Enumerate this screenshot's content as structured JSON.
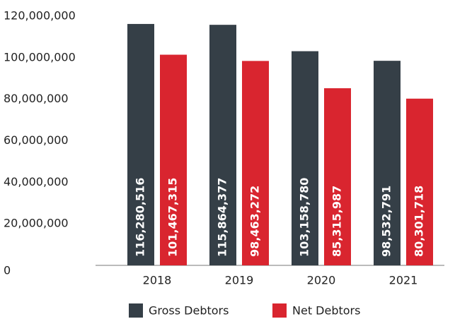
{
  "chart_data": {
    "type": "bar",
    "categories": [
      "2018",
      "2019",
      "2020",
      "2021"
    ],
    "series": [
      {
        "name": "Gross Debtors",
        "color": "#353f47",
        "values": [
          116280516,
          115864377,
          103158780,
          98532791
        ],
        "value_labels": [
          "116,280,516",
          "115,864,377",
          "103,158,780",
          "98,532,791"
        ]
      },
      {
        "name": "Net Debtors",
        "color": "#d9252f",
        "values": [
          101467315,
          98463272,
          85315987,
          80301718
        ],
        "value_labels": [
          "101,467,315",
          "98,463,272",
          "85,315,987",
          "80,301,718"
        ]
      }
    ],
    "ylim": [
      0,
      120000000
    ],
    "yticks": [
      {
        "value": 0,
        "label": "0"
      },
      {
        "value": 20000000,
        "label": "20,000,000"
      },
      {
        "value": 40000000,
        "label": "40,000,000"
      },
      {
        "value": 60000000,
        "label": "60,000,000"
      },
      {
        "value": 80000000,
        "label": "80,000,000"
      },
      {
        "value": 100000000,
        "label": "100,000,000"
      },
      {
        "value": 120000000,
        "label": "120,000,000"
      }
    ],
    "grid": false,
    "legend": "bottom"
  }
}
